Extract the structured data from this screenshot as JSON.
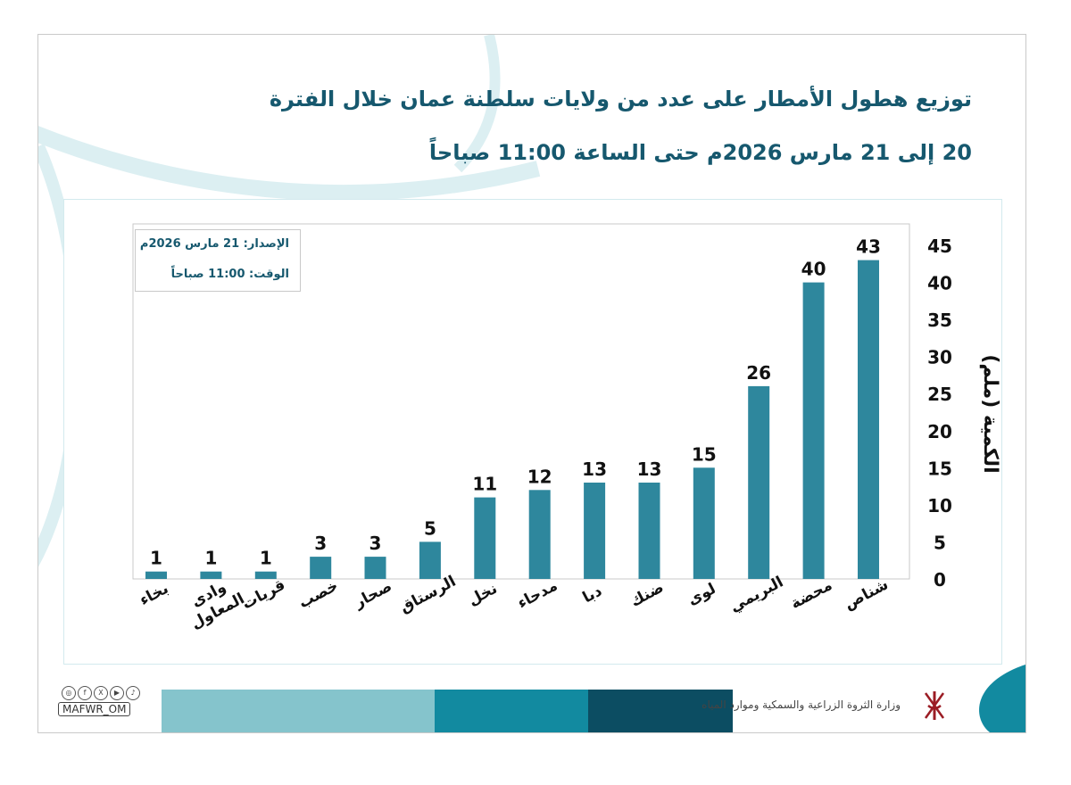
{
  "title": {
    "line1": "توزيع هطول الأمطار على عدد من ولايات سلطنة عمان خلال الفترة",
    "line2": "20 إلى 21 مارس  2026م حتى الساعة 11:00 صباحاً"
  },
  "info": {
    "issue": "الإصدار: 21 مارس 2026م",
    "time": "الوقت:  11:00 صباحاً"
  },
  "chart_data": {
    "type": "bar",
    "categories": [
      [
        "شناص"
      ],
      [
        "محضة"
      ],
      [
        "البريمي"
      ],
      [
        "لوى"
      ],
      [
        "ضنك"
      ],
      [
        "دبا"
      ],
      [
        "مدحاء"
      ],
      [
        "نخل"
      ],
      [
        "الرستاق"
      ],
      [
        "صحار"
      ],
      [
        "خصب"
      ],
      [
        "قريات"
      ],
      [
        "وادى",
        "المعاول"
      ],
      [
        "بخاء"
      ]
    ],
    "values": [
      43,
      40,
      26,
      15,
      13,
      13,
      12,
      11,
      5,
      3,
      3,
      1,
      1,
      1
    ],
    "ylabel": "الكمية (ملم)",
    "ylim": [
      0,
      45
    ],
    "yticks": [
      0,
      5,
      10,
      15,
      20,
      25,
      30,
      35,
      40,
      45
    ],
    "bar_color": "#2e879d",
    "axis_side": "right",
    "grid": false
  },
  "footer": {
    "handle": "MAFWR_OM",
    "social_icons": [
      "instagram-icon",
      "facebook-icon",
      "x-icon",
      "youtube-icon",
      "tiktok-icon"
    ],
    "ministry": "وزارة الثروة الزراعية والسمكية وموارد المياه",
    "bar_colors": [
      "#85c4cc",
      "#128aa0",
      "#0c4d62"
    ]
  }
}
